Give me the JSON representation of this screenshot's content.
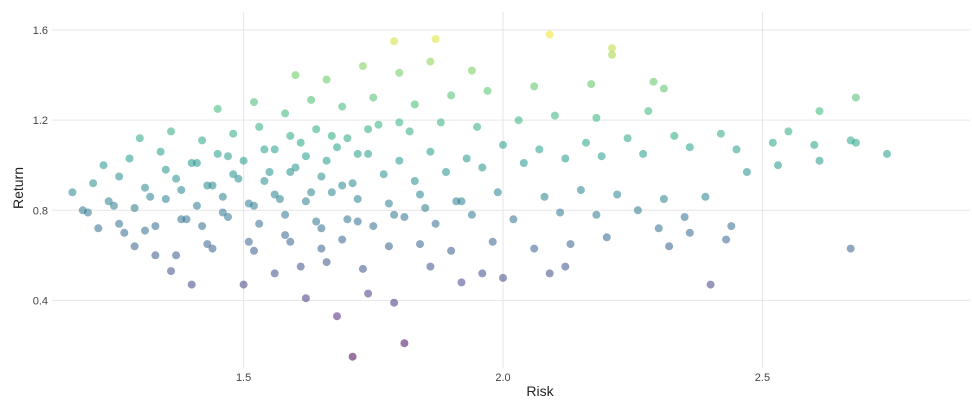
{
  "chart_data": {
    "type": "scatter",
    "xlabel": "Risk",
    "ylabel": "Return",
    "xlim": [
      1.15,
      2.9
    ],
    "ylim": [
      0.1,
      1.68
    ],
    "x_ticks": [
      1.5,
      2.0,
      2.5
    ],
    "x_tick_labels": [
      "1.5",
      "2.0",
      "2.5"
    ],
    "y_ticks": [
      0.4,
      0.8,
      1.2,
      1.6
    ],
    "y_tick_labels": [
      "0.4",
      "0.8",
      "1.2",
      "1.6"
    ],
    "grid": true,
    "legend": "none",
    "colorscale": "viridis",
    "color_by": "y",
    "color_range": [
      0.15,
      1.6
    ],
    "marker_opacity": 0.55,
    "series": [
      {
        "x": [
          1.71,
          1.81,
          1.68,
          1.79,
          1.62,
          1.74,
          1.36,
          1.4,
          1.5,
          1.56,
          1.61,
          1.66,
          1.73,
          1.86,
          1.92,
          1.96,
          2.0,
          2.09,
          2.12,
          2.4,
          2.67,
          1.29,
          1.33,
          1.43,
          1.52,
          1.59,
          1.65,
          1.69,
          1.78,
          1.84,
          1.9,
          1.98,
          2.06,
          2.13,
          2.2,
          2.32,
          2.43,
          2.36,
          2.3,
          1.22,
          1.26,
          1.31,
          1.38,
          1.42,
          1.47,
          1.53,
          1.58,
          1.64,
          1.7,
          1.75,
          1.81,
          1.87,
          1.94,
          2.02,
          2.11,
          2.18,
          2.26,
          2.35,
          2.44,
          1.19,
          1.24,
          1.29,
          1.35,
          1.41,
          1.46,
          1.51,
          1.56,
          1.62,
          1.67,
          1.72,
          1.78,
          1.84,
          1.91,
          1.99,
          2.08,
          2.15,
          2.22,
          2.31,
          2.39,
          2.47,
          2.53,
          2.61,
          2.74,
          1.17,
          1.21,
          1.26,
          1.31,
          1.37,
          1.43,
          1.48,
          1.54,
          1.59,
          1.65,
          1.71,
          1.77,
          1.83,
          1.89,
          1.96,
          2.04,
          2.12,
          2.19,
          2.27,
          2.36,
          2.45,
          2.52,
          2.6,
          2.68,
          1.23,
          1.28,
          1.34,
          1.4,
          1.45,
          1.5,
          1.56,
          1.62,
          1.68,
          1.74,
          1.8,
          1.86,
          1.93,
          2.0,
          2.07,
          2.16,
          2.24,
          2.33,
          2.42,
          2.55,
          2.67,
          1.3,
          1.36,
          1.42,
          1.48,
          1.53,
          1.59,
          1.64,
          1.7,
          1.76,
          1.82,
          1.88,
          1.95,
          2.03,
          2.1,
          2.18,
          2.28,
          1.45,
          1.52,
          1.58,
          1.63,
          1.69,
          1.75,
          1.83,
          1.9,
          1.97,
          2.06,
          2.17,
          2.29,
          2.61,
          2.68,
          1.6,
          1.66,
          1.73,
          1.8,
          1.86,
          1.94,
          2.21,
          2.31,
          1.79,
          1.87,
          2.09,
          2.21,
          1.2,
          1.25,
          1.32,
          1.38,
          1.44,
          1.49,
          1.55,
          1.6,
          1.66,
          1.72,
          1.27,
          1.33,
          1.39,
          1.46,
          1.52,
          1.57,
          1.63,
          1.69,
          1.35,
          1.41,
          1.47,
          1.54,
          1.61,
          1.67,
          1.74,
          1.8,
          1.37,
          1.44,
          1.51,
          1.58,
          1.65,
          1.72,
          1.79,
          1.85,
          1.92
        ],
        "y": [
          0.15,
          0.21,
          0.33,
          0.39,
          0.41,
          0.43,
          0.53,
          0.47,
          0.47,
          0.52,
          0.55,
          0.57,
          0.54,
          0.55,
          0.48,
          0.52,
          0.5,
          0.52,
          0.55,
          0.47,
          0.63,
          0.64,
          0.6,
          0.65,
          0.62,
          0.66,
          0.63,
          0.67,
          0.64,
          0.65,
          0.62,
          0.66,
          0.63,
          0.65,
          0.68,
          0.64,
          0.67,
          0.7,
          0.72,
          0.72,
          0.74,
          0.71,
          0.76,
          0.73,
          0.77,
          0.74,
          0.78,
          0.75,
          0.76,
          0.73,
          0.77,
          0.74,
          0.78,
          0.76,
          0.79,
          0.78,
          0.8,
          0.77,
          0.73,
          0.8,
          0.84,
          0.81,
          0.85,
          0.82,
          0.86,
          0.83,
          0.87,
          0.84,
          0.88,
          0.85,
          0.83,
          0.87,
          0.84,
          0.88,
          0.86,
          0.89,
          0.87,
          0.85,
          0.86,
          0.97,
          1.0,
          1.02,
          1.05,
          0.88,
          0.92,
          0.95,
          0.9,
          0.94,
          0.91,
          0.96,
          0.93,
          0.97,
          0.95,
          0.92,
          0.96,
          0.93,
          0.97,
          0.99,
          1.01,
          1.03,
          1.04,
          1.05,
          1.08,
          1.07,
          1.1,
          1.09,
          1.1,
          1.0,
          1.03,
          1.06,
          1.01,
          1.05,
          1.02,
          1.07,
          1.04,
          1.08,
          1.05,
          1.02,
          1.06,
          1.03,
          1.09,
          1.07,
          1.1,
          1.12,
          1.13,
          1.14,
          1.15,
          1.11,
          1.12,
          1.15,
          1.11,
          1.14,
          1.17,
          1.13,
          1.16,
          1.12,
          1.18,
          1.15,
          1.19,
          1.17,
          1.2,
          1.22,
          1.21,
          1.24,
          1.25,
          1.28,
          1.23,
          1.29,
          1.26,
          1.3,
          1.27,
          1.31,
          1.33,
          1.35,
          1.36,
          1.37,
          1.24,
          1.3,
          1.4,
          1.38,
          1.44,
          1.41,
          1.46,
          1.42,
          1.52,
          1.34,
          1.55,
          1.56,
          1.58,
          1.49,
          0.79,
          0.82,
          0.86,
          0.89,
          0.91,
          0.94,
          0.97,
          0.99,
          1.02,
          1.05,
          0.7,
          0.73,
          0.76,
          0.79,
          0.82,
          0.85,
          0.88,
          0.91,
          0.98,
          1.01,
          1.04,
          1.07,
          1.1,
          1.13,
          1.16,
          1.19,
          0.6,
          0.63,
          0.66,
          0.69,
          0.72,
          0.75,
          0.78,
          0.81,
          0.84
        ]
      }
    ]
  }
}
